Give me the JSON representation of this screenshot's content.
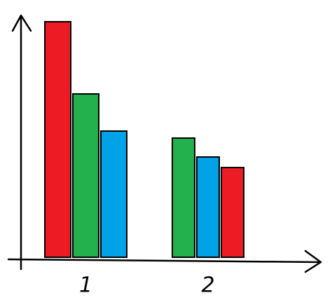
{
  "chart_data": {
    "type": "grouped-bar",
    "categories": [
      "1",
      "2"
    ],
    "values": [
      [
        336,
        233,
        180
      ],
      [
        170,
        143,
        128
      ]
    ],
    "colors": [
      [
        "#ed1c24",
        "#22b14c",
        "#00a2e8"
      ],
      [
        "#22b14c",
        "#00a2e8",
        "#ed1c24"
      ]
    ],
    "ylim": [
      0,
      350
    ]
  }
}
